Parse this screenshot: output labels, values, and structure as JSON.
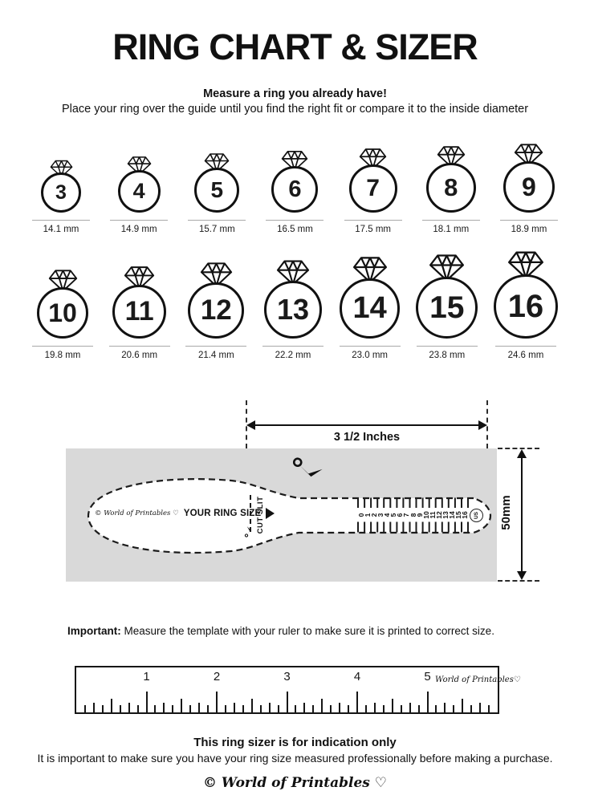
{
  "title": "RING CHART & SIZER",
  "intro": {
    "heading": "Measure a ring you already have!",
    "sub": "Place your ring over the guide until you find the right fit or compare it to the inside diameter"
  },
  "rings": {
    "row1": [
      {
        "size": "3",
        "mm": "14.1 mm"
      },
      {
        "size": "4",
        "mm": "14.9 mm"
      },
      {
        "size": "5",
        "mm": "15.7 mm"
      },
      {
        "size": "6",
        "mm": "16.5 mm"
      },
      {
        "size": "7",
        "mm": "17.5 mm"
      },
      {
        "size": "8",
        "mm": "18.1 mm"
      },
      {
        "size": "9",
        "mm": "18.9 mm"
      }
    ],
    "row2": [
      {
        "size": "10",
        "mm": "19.8 mm"
      },
      {
        "size": "11",
        "mm": "20.6 mm"
      },
      {
        "size": "12",
        "mm": "21.4 mm"
      },
      {
        "size": "13",
        "mm": "22.2 mm"
      },
      {
        "size": "14",
        "mm": "23.0 mm"
      },
      {
        "size": "15",
        "mm": "23.8 mm"
      },
      {
        "size": "16",
        "mm": "24.6 mm"
      }
    ]
  },
  "sizer": {
    "width_label": "3 1/2 Inches",
    "height_label": "50mm",
    "brand": "© World of Printables ♡",
    "your_ring_size": "YOUR RING SIZE",
    "cut_slit": "CUT SLIT",
    "us_label": "US",
    "scale_numbers": [
      "0",
      "1",
      "2",
      "3",
      "4",
      "5",
      "6",
      "7",
      "8",
      "9",
      "10",
      "11",
      "12",
      "13",
      "14",
      "15",
      "16"
    ]
  },
  "important": {
    "bold": "Important:",
    "text": " Measure the template with your ruler to make sure it is printed to correct size."
  },
  "ruler": {
    "numbers": [
      "1",
      "2",
      "3",
      "4",
      "5"
    ],
    "brand": "World of Printables♡"
  },
  "footer": {
    "bold": "This ring sizer is for indication only",
    "text": "It is important to make sure you have your ring size measured professionally before making a purchase.",
    "logo": "© World of Printables ♡"
  },
  "colors": {
    "ink": "#111111",
    "panel": "#d9d9d9"
  }
}
